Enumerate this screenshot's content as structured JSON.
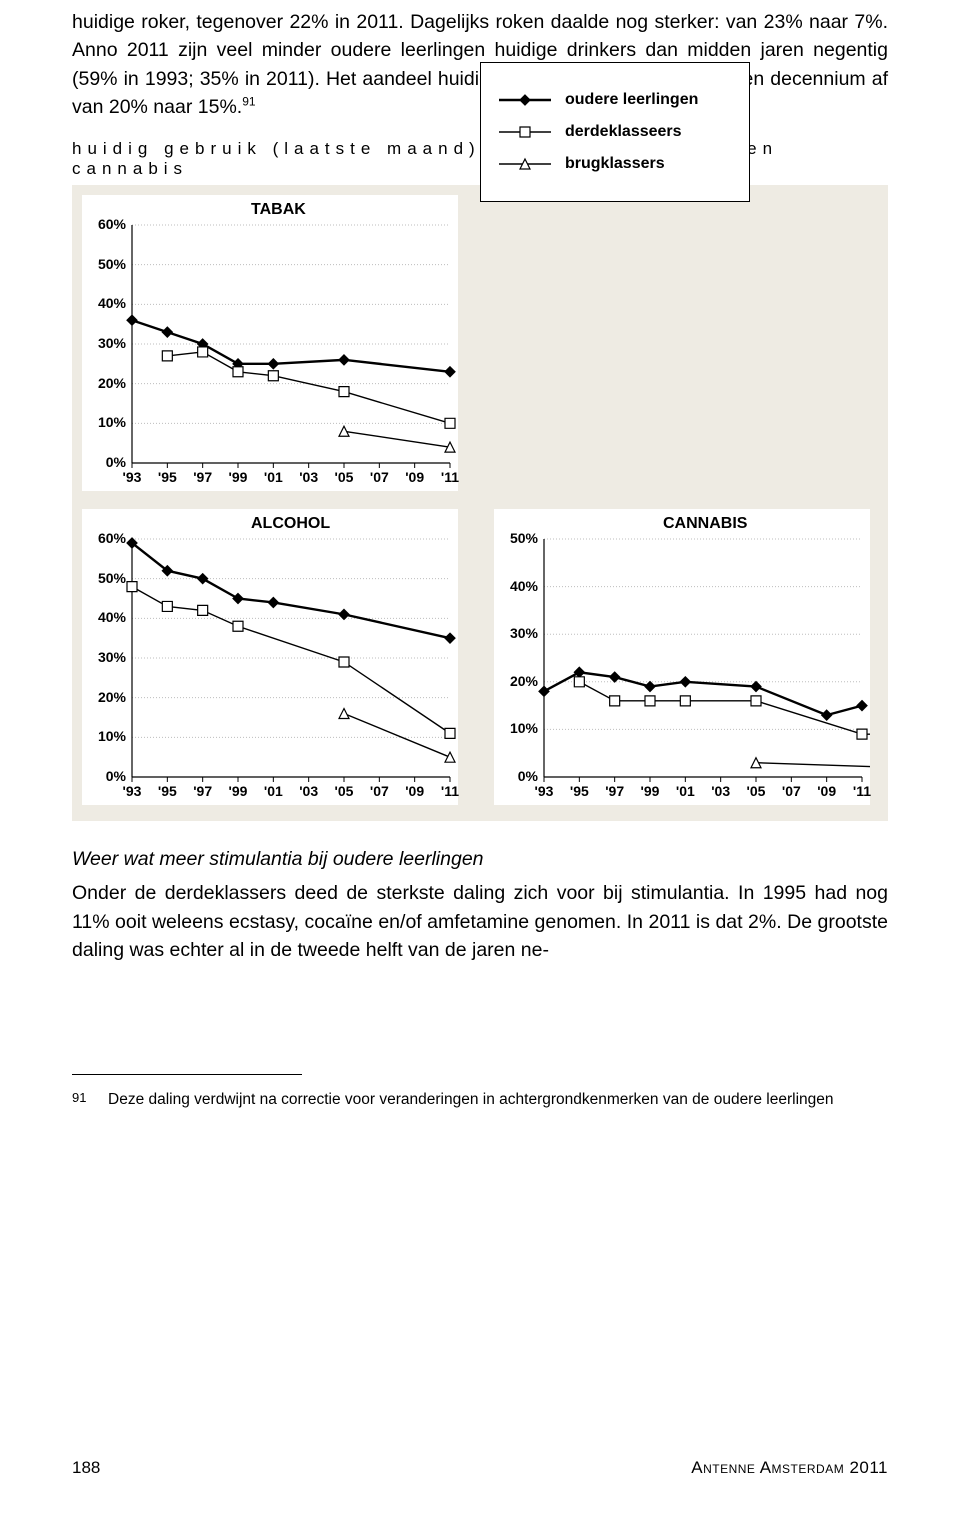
{
  "text": {
    "para1": "huidige roker, tegenover 22% in 2011. Dagelijks roken daalde nog sterker: van 23% naar 7%. Anno 2011 zijn veel minder oudere leerlingen huidige drinkers dan midden jaren negentig (59% in 1993; 35% in 2011). Het aandeel huidige blowers nam in het afgelopen decennium af van 20% naar 15%.",
    "para1_ref": "91",
    "subheading": "huidig gebruik (laatste maand) van tabak, alcohol en cannabis",
    "italic_head": "Weer wat meer stimulantia bij oudere leerlingen",
    "para2": "Onder de derdeklassers deed de sterkste daling zich voor bij stimulantia. In 1995 had nog 11% ooit weleens ecstasy, cocaïne en/of amfetamine genomen. In 2011 is dat 2%. De grootste daling was echter al in de tweede helft van de jaren ne-"
  },
  "footnote": {
    "num": "91",
    "text": "Deze daling verdwijnt na correctie voor veranderingen in achtergrondkenmerken van de oudere leerlingen"
  },
  "footer": {
    "page": "188",
    "right": "Antenne Amsterdam 2011"
  },
  "charts": {
    "xlabels": [
      "'93",
      "'95",
      "'97",
      "'99",
      "'01",
      "'03",
      "'05",
      "'07",
      "'09",
      "'11"
    ],
    "colors": {
      "background": "#eeebe3",
      "grid": "#bdbdbd",
      "axis": "#000000",
      "line": "#000000",
      "marker_fill_open": "#ffffff"
    },
    "legend": [
      {
        "label": "oudere leerlingen",
        "marker": "diamond",
        "fill": "#000000"
      },
      {
        "label": "derdeklasseers",
        "marker": "square",
        "fill": "#ffffff"
      },
      {
        "label": "brugklassers",
        "marker": "triangle",
        "fill": "#ffffff"
      }
    ],
    "tabak": {
      "title": "TABAK",
      "ylim": [
        0,
        60
      ],
      "ystep": 10,
      "series": {
        "oudere": [
          36,
          33,
          30,
          25,
          25,
          null,
          26,
          null,
          null,
          23
        ],
        "derde": [
          null,
          27,
          28,
          23,
          22,
          null,
          18,
          null,
          null,
          10
        ],
        "brug": [
          null,
          null,
          null,
          null,
          null,
          null,
          8,
          null,
          null,
          4
        ]
      }
    },
    "alcohol": {
      "title": "ALCOHOL",
      "ylim": [
        0,
        60
      ],
      "ystep": 10,
      "series": {
        "oudere": [
          59,
          52,
          50,
          45,
          44,
          null,
          41,
          null,
          null,
          35
        ],
        "derde": [
          48,
          43,
          42,
          38,
          null,
          null,
          29,
          null,
          null,
          11
        ],
        "brug": [
          null,
          null,
          null,
          null,
          null,
          null,
          16,
          null,
          null,
          5
        ]
      }
    },
    "cannabis": {
      "title": "CANNABIS",
      "ylim": [
        0,
        50
      ],
      "ystep": 10,
      "series": {
        "oudere": [
          18,
          22,
          21,
          19,
          20,
          null,
          19,
          null,
          null,
          13,
          15
        ],
        "oudere_x": [
          "'93",
          "'95",
          "'97",
          "'99",
          "'01",
          null,
          "'05",
          null,
          null,
          "'09",
          "'11"
        ],
        "derde": [
          null,
          20,
          16,
          16,
          16,
          null,
          16,
          null,
          null,
          9,
          9
        ],
        "brug": [
          null,
          null,
          null,
          null,
          null,
          null,
          3,
          null,
          null,
          null,
          2
        ]
      }
    }
  }
}
